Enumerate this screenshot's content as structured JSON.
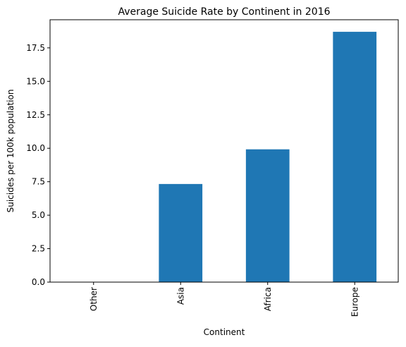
{
  "chart_data": {
    "type": "bar",
    "title": "Average Suicide Rate by Continent in 2016",
    "xlabel": "Continent",
    "ylabel": "Suicides per 100k population",
    "categories": [
      "Other",
      "Asia",
      "Africa",
      "Europe"
    ],
    "values": [
      0,
      7.33,
      9.92,
      18.7
    ],
    "ylim": [
      0,
      19.6
    ],
    "yticks": [
      0.0,
      2.5,
      5.0,
      7.5,
      10.0,
      12.5,
      15.0,
      17.5
    ],
    "ytick_labels": [
      "0.0",
      "2.5",
      "5.0",
      "7.5",
      "10.0",
      "12.5",
      "15.0",
      "17.5"
    ],
    "bar_color": "#1f77b4",
    "grid": false,
    "legend": "none"
  }
}
